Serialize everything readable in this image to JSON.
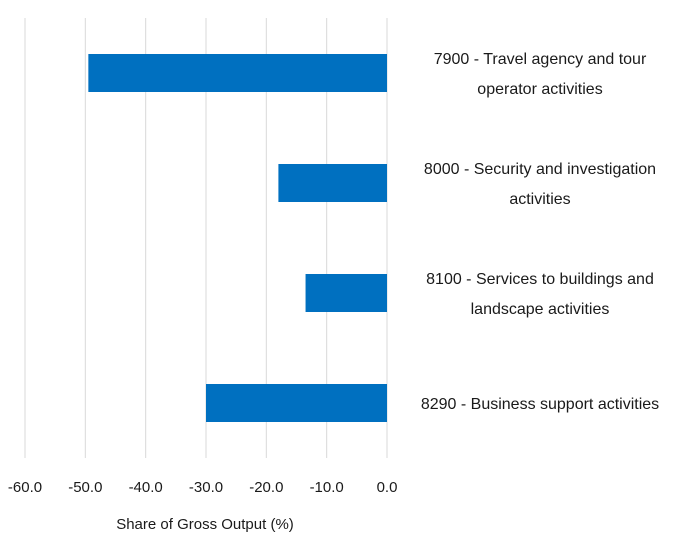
{
  "chart_data": {
    "type": "bar",
    "orientation": "horizontal",
    "categories": [
      [
        "7900 - Travel agency  and tour",
        "operator activities"
      ],
      [
        "8000 - Security and investigation",
        "activities"
      ],
      [
        "8100 - Services to buildings and",
        "landscape activities"
      ],
      [
        "8290 - Business support activities"
      ]
    ],
    "values": [
      -49.5,
      -18.0,
      -13.5,
      -30.0
    ],
    "xlim": [
      -60,
      0
    ],
    "xticks": [
      "-60.0",
      "-50.0",
      "-40.0",
      "-30.0",
      "-20.0",
      "-10.0",
      "0.0"
    ],
    "xlabel": "Share of Gross Output (%)",
    "ylabel": "",
    "title": "",
    "grid": true,
    "bar_color": "#0070C0",
    "grid_color": "#D9D9D9"
  }
}
